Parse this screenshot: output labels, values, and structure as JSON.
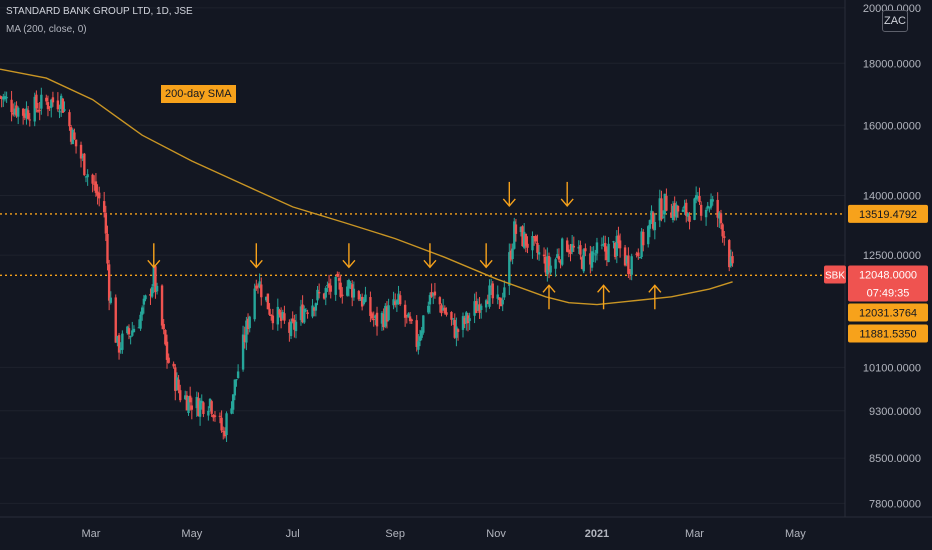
{
  "header": {
    "symbol_line": "STANDARD BANK GROUP LTD, 1D, JSE",
    "indicator_line": "MA (200, close, 0)"
  },
  "currency": "ZAC",
  "annotation": "200-day SMA",
  "price_axis": {
    "ticks": [
      "20000.0000",
      "18000.0000",
      "16000.0000",
      "14000.0000",
      "12500.0000",
      "10100.0000",
      "9300.0000",
      "8500.0000",
      "7800.0000"
    ]
  },
  "time_axis": {
    "labels": [
      "Mar",
      "May",
      "Jul",
      "Sep",
      "Nov",
      "2021",
      "Mar",
      "May"
    ]
  },
  "price_tags": {
    "symbol": "SBK",
    "last": "12048.0000",
    "countdown": "07:49:35",
    "resistance": "13519.4792",
    "support": "12031.3764",
    "ma": "11881.5350"
  },
  "colors": {
    "background": "#131722",
    "up": "#26a69a",
    "down": "#ef5350",
    "ma": "#c99524",
    "level": "#f7a21b",
    "grid": "#1e222d",
    "last_tag": "#ef5350"
  },
  "chart_data": {
    "type": "candlestick",
    "symbol": "STANDARD BANK GROUP LTD",
    "timeframe": "1D",
    "exchange": "JSE",
    "currency": "ZAC",
    "y_scale": "log",
    "y_range": [
      7600,
      20300
    ],
    "x_range": [
      "2020-01-06",
      "2021-05-31"
    ],
    "price_waypoints": [
      [
        "2020-01-06",
        16900
      ],
      [
        "2020-01-20",
        16400
      ],
      [
        "2020-02-03",
        16700
      ],
      [
        "2020-02-12",
        16800
      ],
      [
        "2020-02-20",
        15500
      ],
      [
        "2020-03-02",
        14300
      ],
      [
        "2020-03-09",
        13600
      ],
      [
        "2020-03-12",
        11700
      ],
      [
        "2020-03-17",
        10500
      ],
      [
        "2020-03-25",
        10800
      ],
      [
        "2020-04-01",
        11200
      ],
      [
        "2020-04-08",
        12000
      ],
      [
        "2020-04-16",
        10300
      ],
      [
        "2020-04-24",
        9600
      ],
      [
        "2020-05-04",
        9400
      ],
      [
        "2020-05-12",
        9500
      ],
      [
        "2020-05-20",
        8900
      ],
      [
        "2020-05-28",
        9900
      ],
      [
        "2020-06-05",
        11200
      ],
      [
        "2020-06-09",
        12000
      ],
      [
        "2020-06-17",
        11300
      ],
      [
        "2020-06-30",
        10800
      ],
      [
        "2020-07-08",
        11300
      ],
      [
        "2020-07-22",
        11700
      ],
      [
        "2020-08-04",
        11800
      ],
      [
        "2020-08-10",
        11600
      ],
      [
        "2020-08-20",
        11000
      ],
      [
        "2020-09-03",
        11400
      ],
      [
        "2020-09-14",
        10600
      ],
      [
        "2020-09-22",
        11600
      ],
      [
        "2020-09-30",
        11300
      ],
      [
        "2020-10-08",
        10800
      ],
      [
        "2020-10-16",
        11100
      ],
      [
        "2020-10-26",
        11700
      ],
      [
        "2020-11-03",
        11300
      ],
      [
        "2020-11-09",
        12400
      ],
      [
        "2020-11-12",
        13100
      ],
      [
        "2020-11-23",
        12700
      ],
      [
        "2020-12-03",
        12200
      ],
      [
        "2020-12-14",
        12800
      ],
      [
        "2020-12-22",
        12400
      ],
      [
        "2021-01-05",
        12600
      ],
      [
        "2021-01-14",
        12700
      ],
      [
        "2021-01-20",
        12300
      ],
      [
        "2021-01-28",
        12800
      ],
      [
        "2021-02-05",
        13500
      ],
      [
        "2021-02-12",
        13800
      ],
      [
        "2021-02-22",
        13500
      ],
      [
        "2021-03-01",
        13700
      ],
      [
        "2021-03-11",
        13800
      ],
      [
        "2021-03-18",
        13200
      ],
      [
        "2021-03-24",
        12048
      ]
    ],
    "sma200": {
      "name": "200-day SMA",
      "points": [
        [
          "2020-01-06",
          17800
        ],
        [
          "2020-02-03",
          17500
        ],
        [
          "2020-03-02",
          16800
        ],
        [
          "2020-04-01",
          15700
        ],
        [
          "2020-05-01",
          14950
        ],
        [
          "2020-06-01",
          14300
        ],
        [
          "2020-07-01",
          13700
        ],
        [
          "2020-08-01",
          13300
        ],
        [
          "2020-09-01",
          12900
        ],
        [
          "2020-10-01",
          12450
        ],
        [
          "2020-11-01",
          11950
        ],
        [
          "2020-12-01",
          11550
        ],
        [
          "2020-12-15",
          11420
        ],
        [
          "2021-01-01",
          11380
        ],
        [
          "2021-01-20",
          11450
        ],
        [
          "2021-02-15",
          11550
        ],
        [
          "2021-03-10",
          11720
        ],
        [
          "2021-03-24",
          11882
        ]
      ]
    },
    "levels": [
      {
        "name": "resistance",
        "value": 13519.4792
      },
      {
        "name": "support",
        "value": 12031.3764
      }
    ],
    "down_arrow_dates": [
      "2020-04-08",
      "2020-06-09",
      "2020-08-04",
      "2020-09-22",
      "2020-10-26",
      "2020-11-09",
      "2020-12-14"
    ],
    "up_arrow_dates": [
      "2020-12-03",
      "2021-01-05",
      "2021-02-05"
    ],
    "last_price": 12048.0,
    "ma_value": 11881.535
  }
}
